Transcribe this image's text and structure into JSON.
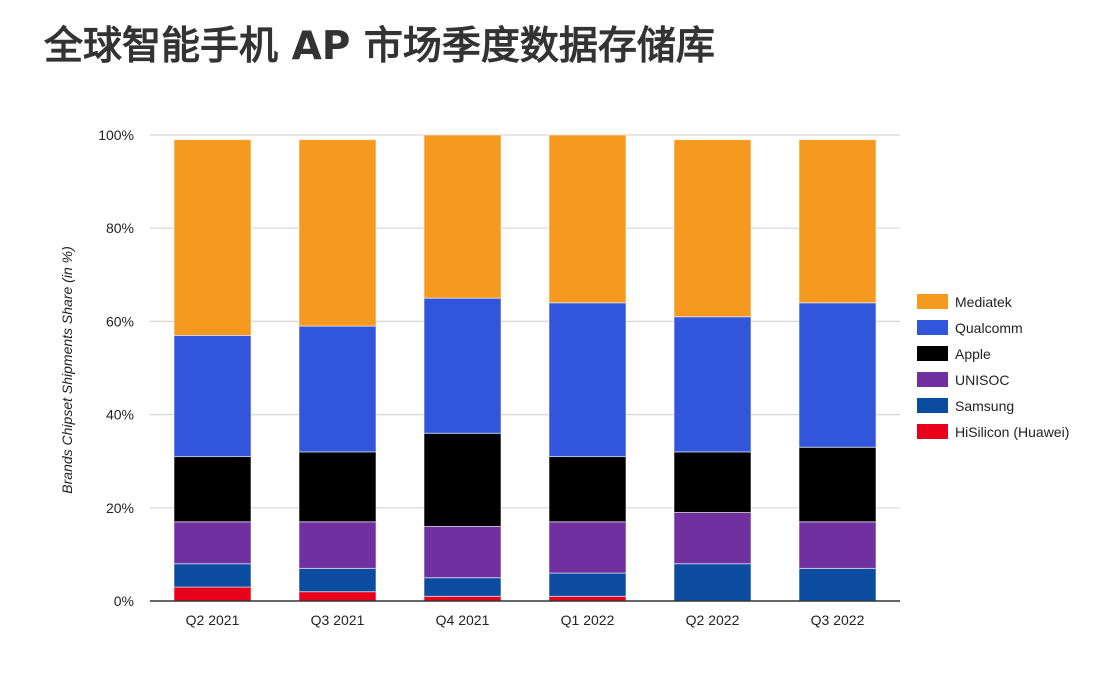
{
  "header": {
    "title": "全球智能手机 AP 市场季度数据存储库"
  },
  "chart_data": {
    "type": "bar",
    "stacked": true,
    "title": "全球智能手机 AP 市场季度数据存储库",
    "xlabel": "",
    "ylabel": "Brands Chipset Shipments Share (in %)",
    "ylim": [
      0,
      100
    ],
    "y_ticks": [
      0,
      20,
      40,
      60,
      80,
      100
    ],
    "y_tick_labels": [
      "0%",
      "20%",
      "40%",
      "60%",
      "80%",
      "100%"
    ],
    "grid": true,
    "legend_position": "right",
    "categories": [
      "Q2 2021",
      "Q3 2021",
      "Q4 2021",
      "Q1 2022",
      "Q2 2022",
      "Q3 2022"
    ],
    "series": [
      {
        "name": "HiSilicon (Huawei)",
        "color": "#e8001a",
        "values": [
          3,
          2,
          1,
          1,
          0,
          0
        ]
      },
      {
        "name": "Samsung",
        "color": "#0c4ca0",
        "values": [
          5,
          5,
          4,
          5,
          8,
          7
        ]
      },
      {
        "name": "UNISOC",
        "color": "#7030a0",
        "values": [
          9,
          10,
          11,
          11,
          11,
          10
        ]
      },
      {
        "name": "Apple",
        "color": "#000000",
        "values": [
          14,
          15,
          20,
          14,
          13,
          16
        ]
      },
      {
        "name": "Qualcomm",
        "color": "#3155db",
        "values": [
          26,
          27,
          29,
          33,
          29,
          31
        ]
      },
      {
        "name": "Mediatek",
        "color": "#f59a1e",
        "values": [
          42,
          40,
          35,
          36,
          38,
          35
        ]
      }
    ],
    "legend_order": [
      "Mediatek",
      "Qualcomm",
      "Apple",
      "UNISOC",
      "Samsung",
      "HiSilicon (Huawei)"
    ]
  }
}
